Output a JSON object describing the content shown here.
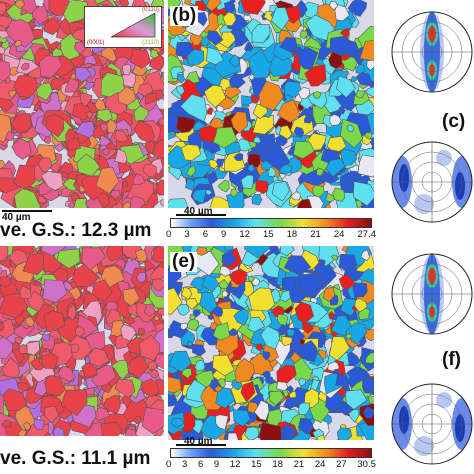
{
  "panels": {
    "a": {
      "label": "",
      "grain_size": "ve. G.S.: 12.3 µm",
      "scale_text": "40 µm"
    },
    "b": {
      "label": "(b)",
      "scale_text": "40 µm",
      "colorbar_ticks": [
        "0",
        "3",
        "6",
        "9",
        "12",
        "15",
        "18",
        "21",
        "24",
        "27.4"
      ]
    },
    "c": {
      "label": "(c)"
    },
    "d": {
      "label": "",
      "grain_size": "ve. G.S.: 11.1 µm"
    },
    "e": {
      "label": "(e)",
      "scale_text": "40 µm",
      "colorbar_ticks": [
        "0",
        "3",
        "6",
        "9",
        "12",
        "15",
        "18",
        "21",
        "24",
        "27",
        "30.5"
      ]
    },
    "f": {
      "label": "(f)"
    }
  },
  "ipf_legend": {
    "top": "(0110)",
    "left": "(0001)",
    "right": "(2110)"
  },
  "colors": {
    "ipf_red": "#e8424a",
    "ipf_pink": "#e85a8a",
    "ipf_green": "#8fd24a",
    "kam_blue": "#2a5ad8",
    "kam_cyan": "#5ee0f0",
    "kam_red": "#e82020",
    "kam_dark": "#8b1010",
    "pole_blue": "#1b3bb8"
  }
}
